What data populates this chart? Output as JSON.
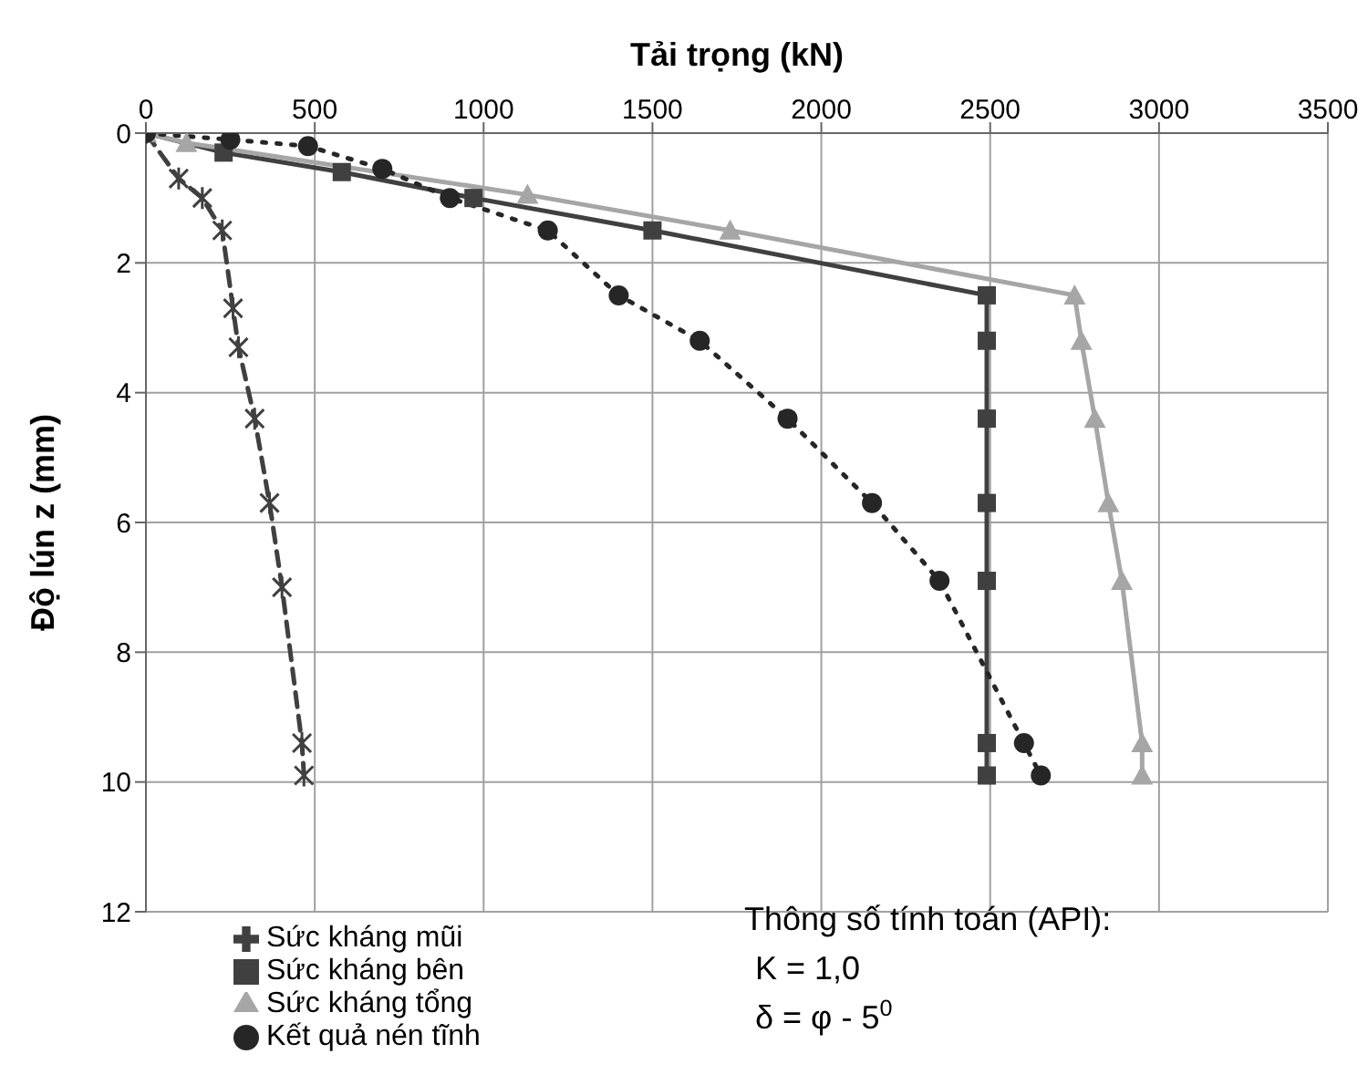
{
  "chart_data": {
    "type": "line",
    "xlabel": "Tải trọng (kN)",
    "ylabel": "Độ lún z (mm)",
    "xlim": [
      0,
      3500
    ],
    "xticks": [
      0,
      500,
      1000,
      1500,
      2000,
      2500,
      3000,
      3500
    ],
    "ylim": [
      12,
      0
    ],
    "yticks": [
      0,
      2,
      4,
      6,
      8,
      10,
      12
    ],
    "grid": true,
    "legend": "bottom left",
    "annotations": [
      "Thông số tính toán (API):",
      "K = 1,0",
      "δ = φ - 5$^{0}$"
    ],
    "series": [
      {
        "name": "Sức kháng mũi",
        "color": "#404040",
        "marker": "cross",
        "line_style": "dashed",
        "x": [
          0,
          97,
          167,
          226,
          258,
          274,
          322,
          366,
          403,
          462,
          468
        ],
        "values": [
          0,
          0.7,
          1.0,
          1.5,
          2.7,
          3.3,
          4.4,
          5.7,
          7.0,
          9.4,
          9.9
        ]
      },
      {
        "name": "Sức kháng bên",
        "color": "#404040",
        "marker": "square",
        "line_style": "solid",
        "x": [
          0,
          230,
          580,
          970,
          1500,
          2490,
          2490,
          2490,
          2490,
          2490,
          2490,
          2490
        ],
        "values": [
          0,
          0.3,
          0.6,
          1.0,
          1.5,
          2.5,
          3.2,
          4.4,
          5.7,
          6.9,
          9.4,
          9.9
        ]
      },
      {
        "name": "Sức kháng tổng",
        "color": "#a6a6a6",
        "marker": "triangle",
        "line_style": "solid",
        "x": [
          0,
          120,
          1130,
          1730,
          2750,
          2770,
          2810,
          2850,
          2890,
          2950,
          2950
        ],
        "values": [
          0,
          0.15,
          0.95,
          1.5,
          2.5,
          3.2,
          4.4,
          5.7,
          6.9,
          9.4,
          9.9
        ]
      },
      {
        "name": "Kết quả nén tĩnh",
        "color": "#262626",
        "marker": "circle",
        "line_style": "dotted",
        "x": [
          0,
          250,
          480,
          700,
          900,
          1190,
          1400,
          1640,
          1900,
          2150,
          2350,
          2600,
          2650
        ],
        "values": [
          0,
          0.1,
          0.2,
          0.55,
          1.0,
          1.5,
          2.5,
          3.2,
          4.4,
          5.7,
          6.9,
          9.4,
          9.9
        ]
      }
    ]
  }
}
